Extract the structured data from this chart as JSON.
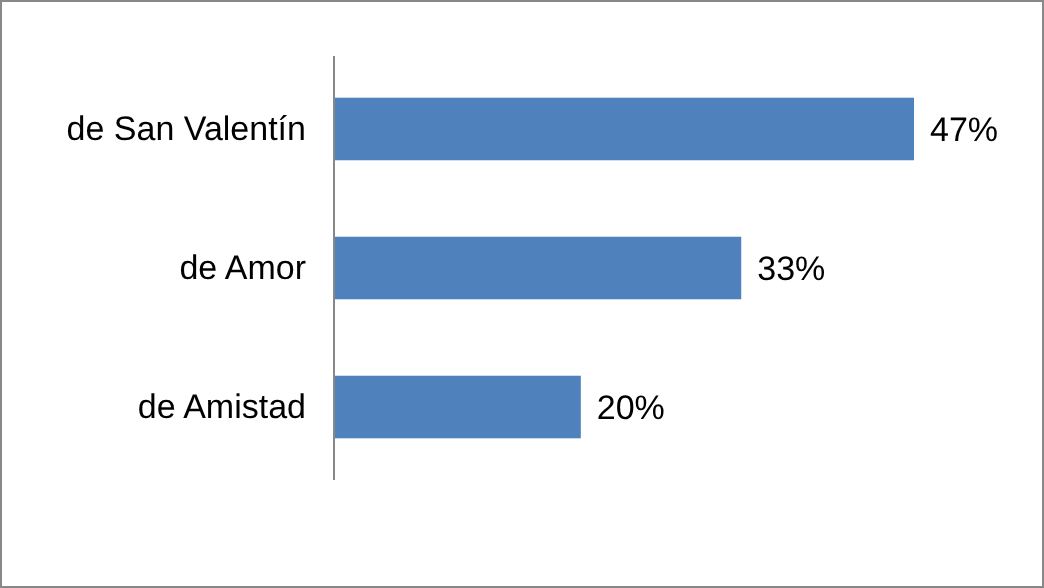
{
  "chart_data": {
    "type": "bar",
    "orientation": "horizontal",
    "categories": [
      "de San Valentín",
      "de Amor",
      "de Amistad"
    ],
    "values": [
      47,
      33,
      20
    ],
    "value_labels": [
      "47%",
      "33%",
      "20%"
    ],
    "color": "#4f81bd"
  }
}
